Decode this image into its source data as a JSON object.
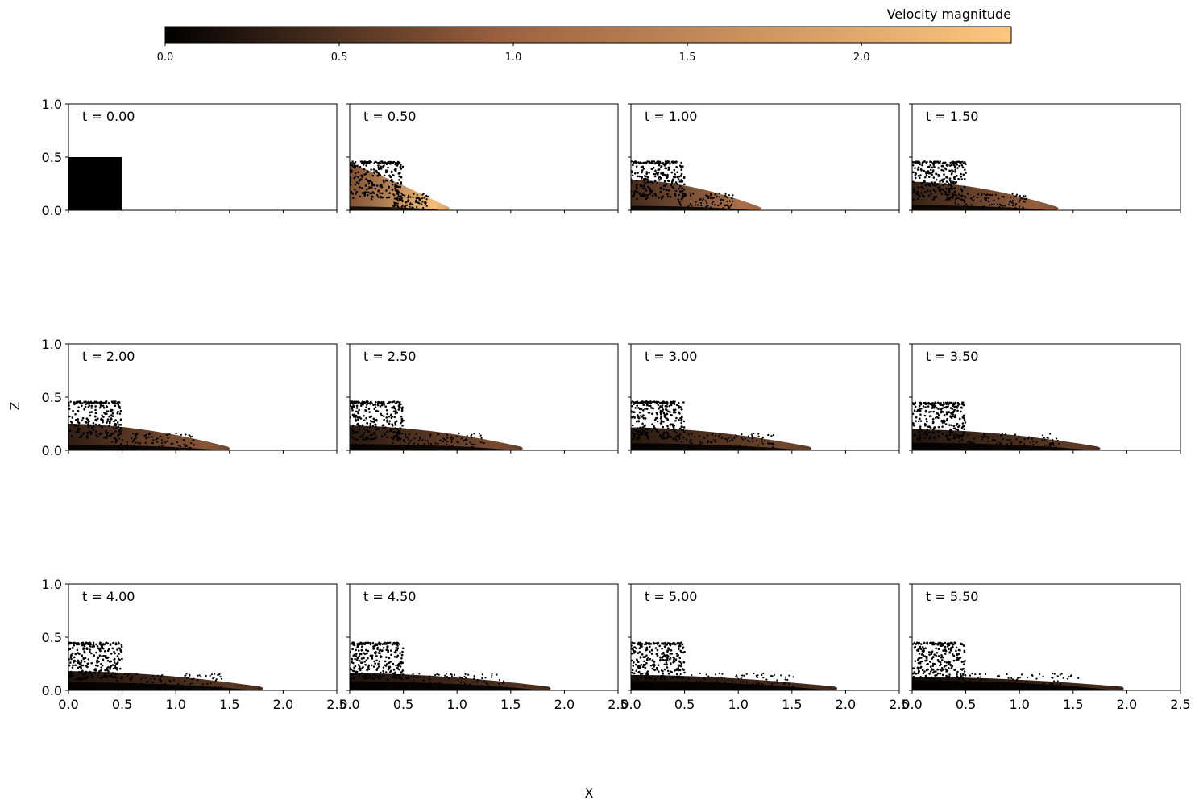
{
  "figure": {
    "xlabel": "X",
    "ylabel": "Z"
  },
  "colorbar": {
    "label": "Velocity magnitude",
    "min": 0.0,
    "max": 2.43,
    "ticks": [
      "0.0",
      "0.5",
      "1.0",
      "1.5",
      "2.0"
    ],
    "tick_values": [
      0.0,
      0.5,
      1.0,
      1.5,
      2.0
    ],
    "colormap": "copper",
    "color_stops": [
      "#000000",
      "#9b6240",
      "#ffc77f"
    ]
  },
  "chart_data": {
    "type": "scatter",
    "layout": "3x4 grid of panels",
    "xlim": [
      0.0,
      2.5
    ],
    "ylim": [
      0.0,
      1.0
    ],
    "xticks": [
      "0.0",
      "0.5",
      "1.0",
      "1.5",
      "2.0",
      "2.5"
    ],
    "xtick_values": [
      0.0,
      0.5,
      1.0,
      1.5,
      2.0,
      2.5
    ],
    "yticks": [
      "0.0",
      "0.5",
      "1.0"
    ],
    "ytick_values": [
      0.0,
      0.5,
      1.0
    ],
    "panels": [
      {
        "label": "t = 0.00",
        "t": 0.0,
        "front_x": 0.5,
        "surface_z": 0.5,
        "peak_speed": 0.0
      },
      {
        "label": "t = 0.50",
        "t": 0.5,
        "front_x": 0.91,
        "surface_z": 0.46,
        "peak_speed": 2.3
      },
      {
        "label": "t = 1.00",
        "t": 1.0,
        "front_x": 1.19,
        "surface_z": 0.46,
        "peak_speed": 1.2
      },
      {
        "label": "t = 1.50",
        "t": 1.5,
        "front_x": 1.34,
        "surface_z": 0.46,
        "peak_speed": 0.95
      },
      {
        "label": "t = 2.00",
        "t": 2.0,
        "front_x": 1.48,
        "surface_z": 0.46,
        "peak_speed": 0.85
      },
      {
        "label": "t = 2.50",
        "t": 2.5,
        "front_x": 1.59,
        "surface_z": 0.46,
        "peak_speed": 0.75
      },
      {
        "label": "t = 3.00",
        "t": 3.0,
        "front_x": 1.66,
        "surface_z": 0.46,
        "peak_speed": 0.7
      },
      {
        "label": "t = 3.50",
        "t": 3.5,
        "front_x": 1.73,
        "surface_z": 0.45,
        "peak_speed": 0.6
      },
      {
        "label": "t = 4.00",
        "t": 4.0,
        "front_x": 1.79,
        "surface_z": 0.45,
        "peak_speed": 0.55
      },
      {
        "label": "t = 4.50",
        "t": 4.5,
        "front_x": 1.85,
        "surface_z": 0.45,
        "peak_speed": 0.5
      },
      {
        "label": "t = 5.00",
        "t": 5.0,
        "front_x": 1.9,
        "surface_z": 0.45,
        "peak_speed": 0.45
      },
      {
        "label": "t = 5.50",
        "t": 5.5,
        "front_x": 1.95,
        "surface_z": 0.45,
        "peak_speed": 0.42
      }
    ]
  }
}
